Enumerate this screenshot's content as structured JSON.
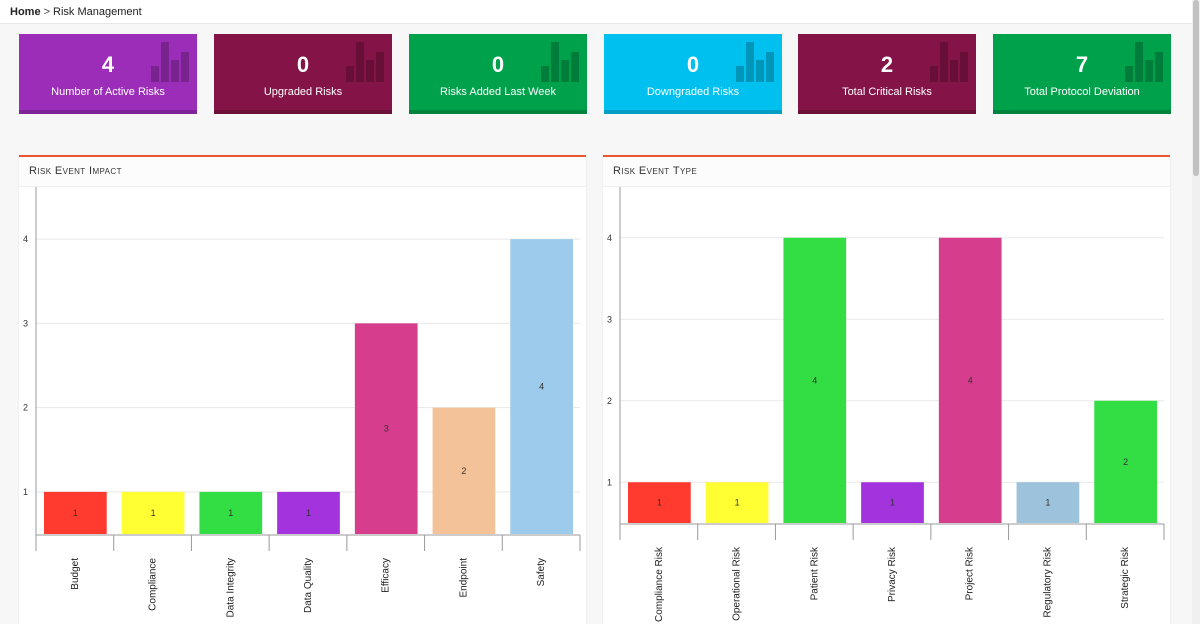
{
  "breadcrumb": {
    "home": "Home",
    "separator": ">",
    "current": "Risk Management"
  },
  "cards": [
    {
      "value": "4",
      "label": "Number of Active Risks",
      "color": "#9b2db8"
    },
    {
      "value": "0",
      "label": "Upgraded Risks",
      "color": "#841447"
    },
    {
      "value": "0",
      "label": "Risks Added Last Week",
      "color": "#00a14b"
    },
    {
      "value": "0",
      "label": "Downgraded Risks",
      "color": "#00c0ef"
    },
    {
      "value": "2",
      "label": "Total Critical Risks",
      "color": "#841447"
    },
    {
      "value": "7",
      "label": "Total Protocol Deviation",
      "color": "#00a14b"
    }
  ],
  "panels": [
    {
      "title": "Risk Event Impact"
    },
    {
      "title": "Risk Event Type"
    }
  ],
  "chart_data": [
    {
      "type": "bar",
      "title": "Risk Event Impact",
      "categories": [
        "Budget",
        "Compliance",
        "Data Integrity",
        "Data Quality",
        "Efficacy",
        "Endpoint",
        "Safety"
      ],
      "values": [
        1,
        1,
        1,
        1,
        3,
        2,
        4
      ],
      "colors": [
        "#ff3b30",
        "#ffff33",
        "#33dd44",
        "#a233dd",
        "#d63d8c",
        "#f4c298",
        "#9ccbeb"
      ],
      "yticks": [
        1,
        2,
        3,
        4
      ],
      "ylim": [
        0.5,
        4.5
      ],
      "grid": true,
      "data_labels": true
    },
    {
      "type": "bar",
      "title": "Risk Event Type",
      "categories": [
        "Compliance Risk",
        "Operational Risk",
        "Patient Risk",
        "Privacy Risk",
        "Project Risk",
        "Regulatory Risk",
        "Strategic Risk"
      ],
      "values": [
        1,
        1,
        4,
        1,
        4,
        1,
        2
      ],
      "colors": [
        "#ff3b30",
        "#ffff33",
        "#33dd44",
        "#a233dd",
        "#d63d8c",
        "#9cc2dc",
        "#33dd44"
      ],
      "yticks": [
        1,
        2,
        3,
        4
      ],
      "ylim": [
        0.5,
        4.5
      ],
      "grid": true,
      "data_labels": true
    }
  ]
}
